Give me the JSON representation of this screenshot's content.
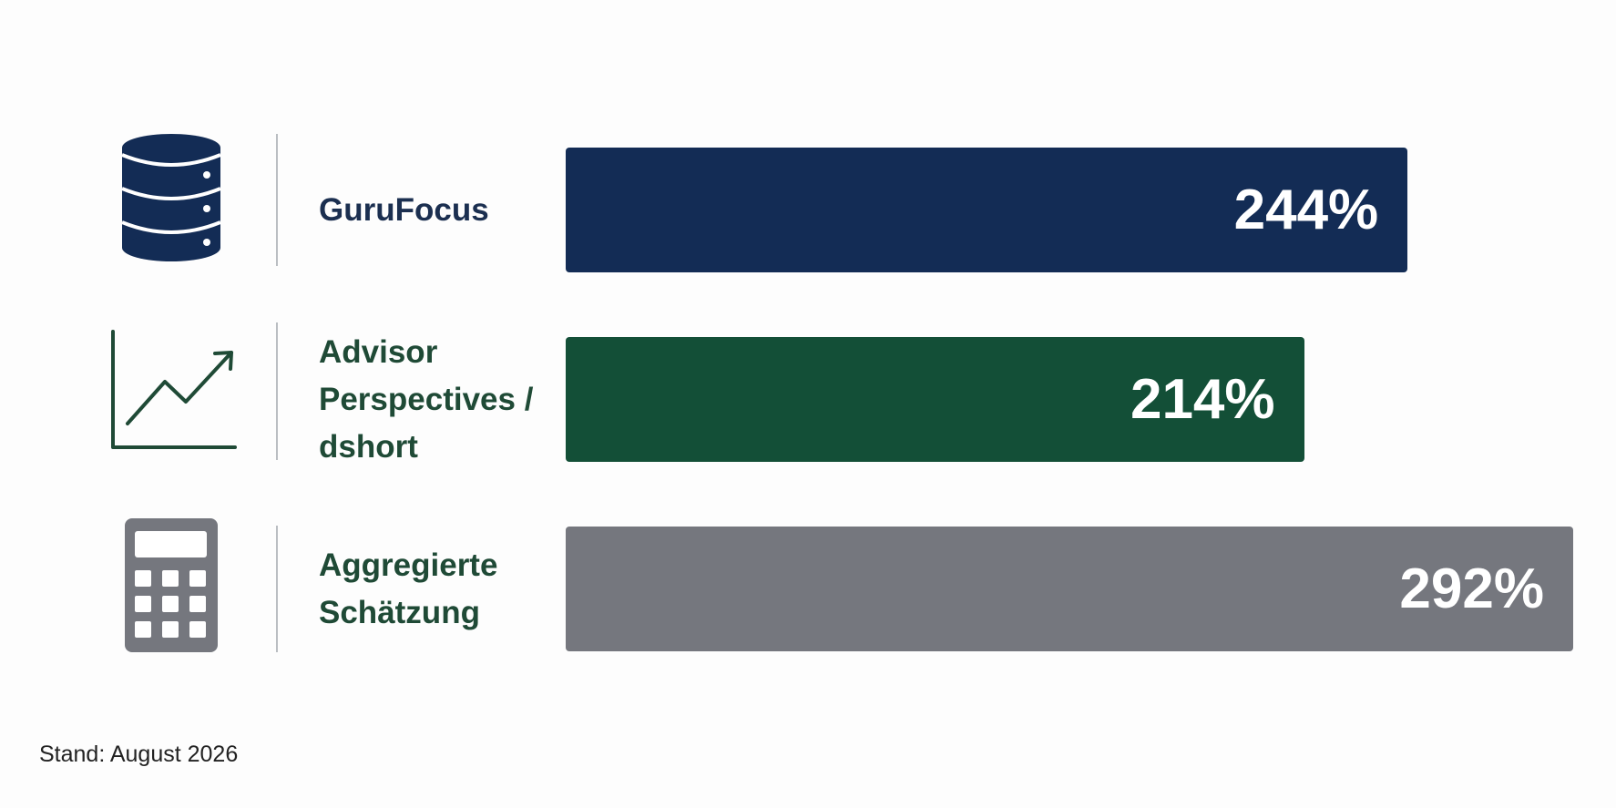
{
  "chart_data": {
    "type": "bar",
    "orientation": "horizontal",
    "categories": [
      "GuruFocus",
      "Advisor Perspectives / dshort",
      "Aggregierte Schätzung"
    ],
    "values": [
      244,
      214,
      292
    ],
    "value_labels": [
      "244%",
      "214%",
      "292%"
    ],
    "colors": [
      "#132c55",
      "#134f37",
      "#75777e"
    ],
    "label_colors": [
      "#1b2f50",
      "#1f4a36",
      "#1f4a36"
    ]
  },
  "footer": "Stand: August 2026"
}
